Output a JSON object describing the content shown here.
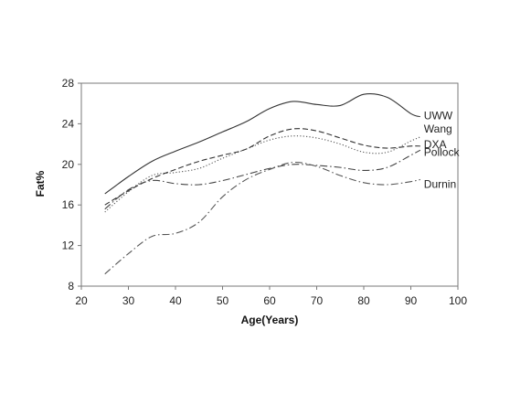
{
  "chart_data": {
    "type": "line",
    "title": "",
    "xlabel": "Age(Years)",
    "ylabel": "Fat%",
    "xlim": [
      20,
      100
    ],
    "ylim": [
      8,
      28
    ],
    "xticks": [
      20,
      30,
      40,
      50,
      60,
      70,
      80,
      90,
      100
    ],
    "yticks": [
      8,
      12,
      16,
      20,
      24,
      28
    ],
    "grid": false,
    "legend": "inline labels at right end of each line",
    "series": [
      {
        "name": "UWW",
        "style": "solid",
        "color": "#333333",
        "x": [
          25,
          30,
          35,
          40,
          45,
          50,
          55,
          60,
          65,
          70,
          75,
          80,
          85,
          90,
          92
        ],
        "y": [
          17.1,
          18.8,
          20.3,
          21.3,
          22.2,
          23.2,
          24.2,
          25.5,
          26.2,
          25.9,
          25.8,
          26.9,
          26.6,
          25.0,
          24.7
        ]
      },
      {
        "name": "Wang",
        "style": "dotted",
        "color": "#555555",
        "x": [
          25,
          30,
          35,
          40,
          45,
          50,
          55,
          60,
          65,
          70,
          75,
          80,
          85,
          90,
          92
        ],
        "y": [
          15.3,
          17.3,
          18.9,
          19.2,
          19.6,
          20.6,
          21.5,
          22.4,
          22.8,
          22.6,
          22.0,
          21.2,
          21.2,
          22.3,
          22.7
        ]
      },
      {
        "name": "DXA",
        "style": "dashed",
        "color": "#333333",
        "x": [
          25,
          30,
          35,
          40,
          45,
          50,
          55,
          60,
          65,
          70,
          75,
          80,
          85,
          90,
          92
        ],
        "y": [
          16.0,
          17.4,
          18.6,
          19.5,
          20.3,
          20.9,
          21.5,
          22.8,
          23.5,
          23.3,
          22.6,
          21.9,
          21.6,
          21.8,
          21.8
        ]
      },
      {
        "name": "Pollock",
        "style": "dash-dot",
        "color": "#444444",
        "x": [
          25,
          30,
          35,
          40,
          45,
          50,
          55,
          60,
          65,
          70,
          75,
          80,
          85,
          90,
          92
        ],
        "y": [
          15.6,
          17.5,
          18.4,
          18.1,
          18.0,
          18.4,
          19.0,
          19.6,
          20.0,
          19.9,
          19.7,
          19.4,
          19.7,
          20.9,
          21.4
        ]
      },
      {
        "name": "Durnin",
        "style": "dash-dot",
        "color": "#555555",
        "x": [
          25,
          30,
          35,
          40,
          45,
          50,
          55,
          60,
          65,
          70,
          75,
          80,
          85,
          90,
          92
        ],
        "y": [
          9.2,
          11.2,
          12.9,
          13.2,
          14.3,
          16.8,
          18.5,
          19.5,
          20.2,
          19.8,
          18.9,
          18.2,
          18.0,
          18.3,
          18.5
        ]
      }
    ]
  }
}
